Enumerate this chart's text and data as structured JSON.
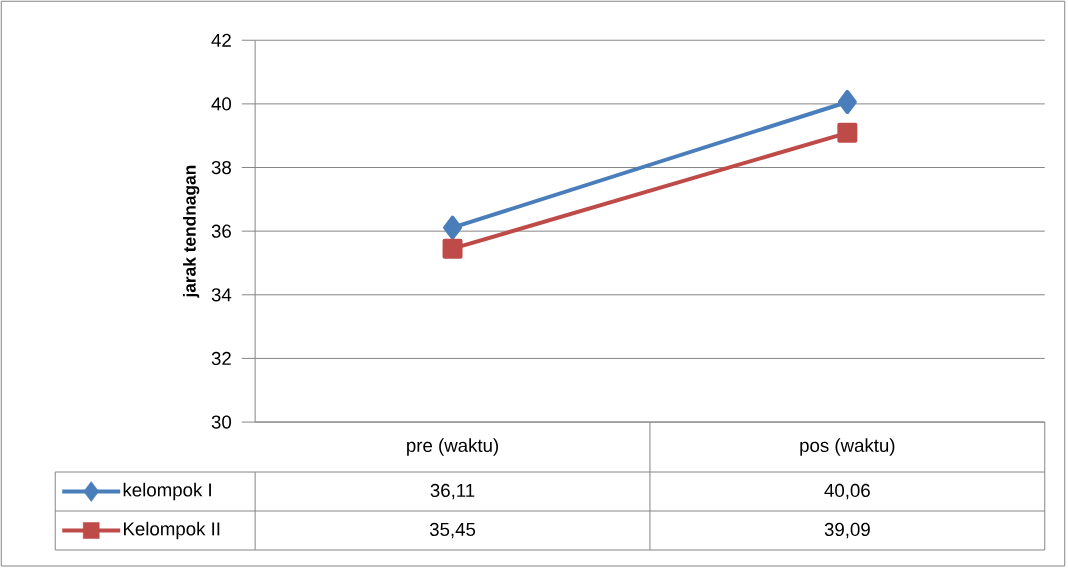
{
  "chart_data": {
    "type": "line",
    "ylabel": "jarak tendnagan",
    "categories": [
      "pre (waktu)",
      "pos (waktu)"
    ],
    "series": [
      {
        "name": "kelompok I",
        "color": "#4a7ebb",
        "marker": "diamond",
        "values": [
          36.11,
          40.06
        ],
        "value_labels": [
          "36,11",
          "40,06"
        ]
      },
      {
        "name": "Kelompok II",
        "color": "#be4b48",
        "marker": "square",
        "values": [
          35.45,
          39.09
        ],
        "value_labels": [
          "35,45",
          "39,09"
        ]
      }
    ],
    "ylim": [
      30,
      42
    ],
    "yticks": [
      30,
      32,
      34,
      36,
      38,
      40,
      42
    ],
    "grid": "y",
    "legend": "bottom"
  }
}
